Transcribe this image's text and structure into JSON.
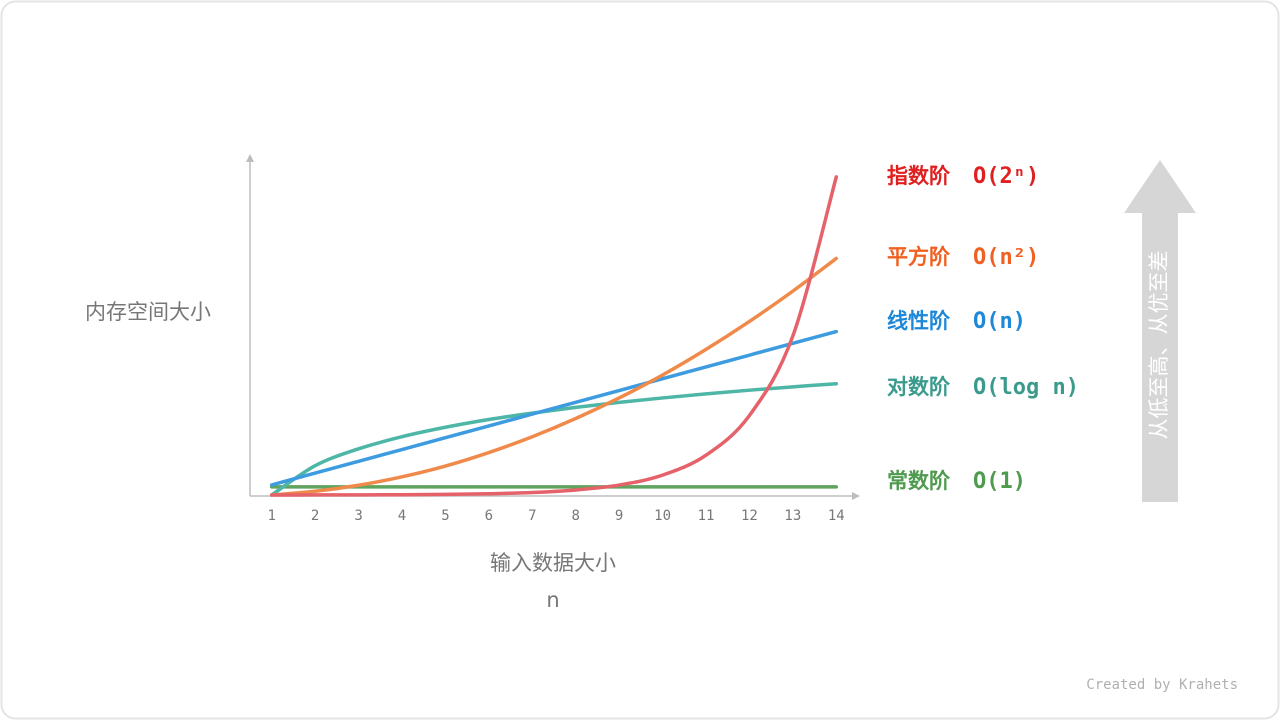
{
  "chart_data": {
    "type": "line",
    "ylabel": "内存空间大小",
    "xlabel": "输入数据大小",
    "xlabel_symbol": "n",
    "x": [
      1,
      2,
      3,
      4,
      5,
      6,
      7,
      8,
      9,
      10,
      11,
      12,
      13,
      14
    ],
    "xlim": [
      0.5,
      14.5
    ],
    "xticks": [
      1,
      2,
      3,
      4,
      5,
      6,
      7,
      8,
      9,
      10,
      11,
      12,
      13,
      14
    ],
    "ylim": [
      0,
      100
    ],
    "grid": false,
    "series": [
      {
        "name": "常数阶",
        "notation": "O(1)",
        "color": "#5fa35f",
        "label_color": "#4e9a4e",
        "values": [
          2.4,
          2.4,
          2.4,
          2.4,
          2.4,
          2.4,
          2.4,
          2.4,
          2.4,
          2.4,
          2.4,
          2.4,
          2.4,
          2.4
        ]
      },
      {
        "name": "对数阶",
        "notation": "O(log n)",
        "color": "#4db6a6",
        "label_color": "#3a9a8c",
        "values": [
          0,
          8.7,
          13.7,
          17.3,
          20.1,
          22.4,
          24.3,
          26,
          27.5,
          28.8,
          30,
          31.1,
          32.1,
          33
        ]
      },
      {
        "name": "线性阶",
        "notation": "O(n)",
        "color": "#3d9be0",
        "label_color": "#1e88d8",
        "values": [
          3,
          6.5,
          10,
          13.5,
          17,
          20.5,
          24,
          27.5,
          31,
          34.5,
          38,
          41.5,
          45,
          48.5
        ]
      },
      {
        "name": "平方阶",
        "notation": "O(n²)",
        "color": "#f08a4b",
        "label_color": "#f06020",
        "values": [
          0,
          1.1,
          2.9,
          5.4,
          8.6,
          12.6,
          17.3,
          22.7,
          28.8,
          35.6,
          43.2,
          51.5,
          60.5,
          70.2
        ]
      },
      {
        "name": "指数阶",
        "notation": "O(2ⁿ)",
        "color": "#e5626b",
        "label_color": "#e02020",
        "values": [
          0.01,
          0.02,
          0.05,
          0.09,
          0.18,
          0.37,
          0.74,
          1.5,
          2.95,
          5.9,
          11.8,
          23.6,
          47.2,
          94.4
        ]
      }
    ],
    "side_arrow_text": "从低至高、从优至差",
    "credit": "Created by Krahets"
  }
}
